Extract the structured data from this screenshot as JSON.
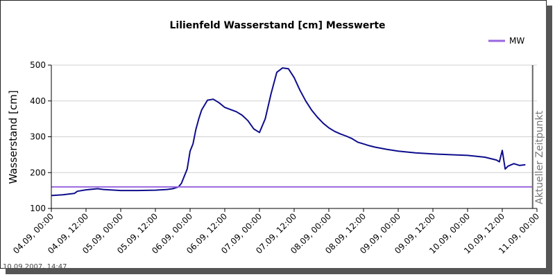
{
  "chart_data": {
    "type": "line",
    "title": "Lilienfeld Wasserstand [cm] Messwerte",
    "ylabel": "Wasserstand [cm]",
    "xlabel": "",
    "ylim": [
      100,
      500
    ],
    "yticks": [
      100,
      200,
      300,
      400,
      500
    ],
    "xticks": [
      "04.09, 00:00",
      "04.09, 12:00",
      "05.09, 00:00",
      "05.09, 12:00",
      "06.09, 00:00",
      "06.09, 12:00",
      "07.09, 00:00",
      "07.09, 12:00",
      "08.09, 00:00",
      "08.09, 12:00",
      "09.09, 00:00",
      "09.09, 12:00",
      "10.09, 00:00",
      "10.09, 12:00",
      "11.09, 00:00"
    ],
    "grid": "horizontal",
    "legend_position": "top-right",
    "series": [
      {
        "color": "#0d0d8c",
        "x_hours": [
          0,
          4,
          8,
          9,
          12,
          16,
          18,
          24,
          30,
          36,
          40,
          42,
          44,
          45,
          47,
          48,
          49,
          50,
          51,
          52,
          54,
          56,
          58,
          60,
          62,
          64,
          66,
          68,
          70,
          72,
          74,
          76,
          78,
          80,
          82,
          84,
          86,
          88,
          90,
          92,
          94,
          96,
          98,
          100,
          102,
          104,
          106,
          108,
          110,
          112,
          116,
          120,
          126,
          132,
          138,
          144,
          150,
          154,
          155,
          156,
          157,
          158,
          160,
          162,
          164
        ],
        "values": [
          136,
          138,
          142,
          148,
          152,
          155,
          153,
          150,
          150,
          151,
          153,
          155,
          160,
          170,
          210,
          260,
          280,
          320,
          350,
          375,
          402,
          405,
          395,
          382,
          376,
          370,
          360,
          345,
          322,
          312,
          350,
          420,
          480,
          492,
          490,
          465,
          430,
          400,
          375,
          355,
          338,
          325,
          315,
          308,
          302,
          295,
          285,
          280,
          275,
          271,
          265,
          260,
          255,
          252,
          250,
          248,
          243,
          235,
          230,
          262,
          210,
          218,
          225,
          220,
          222
        ]
      },
      {
        "name": "MW",
        "color": "#9966e0",
        "x_hours": [
          0,
          166.5
        ],
        "values": [
          160,
          160
        ]
      }
    ],
    "marker": {
      "x_hours": 166.5,
      "label": "Aktueller Zeitpunkt"
    }
  },
  "footer": {
    "timestamp": "10.09.2007, 14:47"
  }
}
